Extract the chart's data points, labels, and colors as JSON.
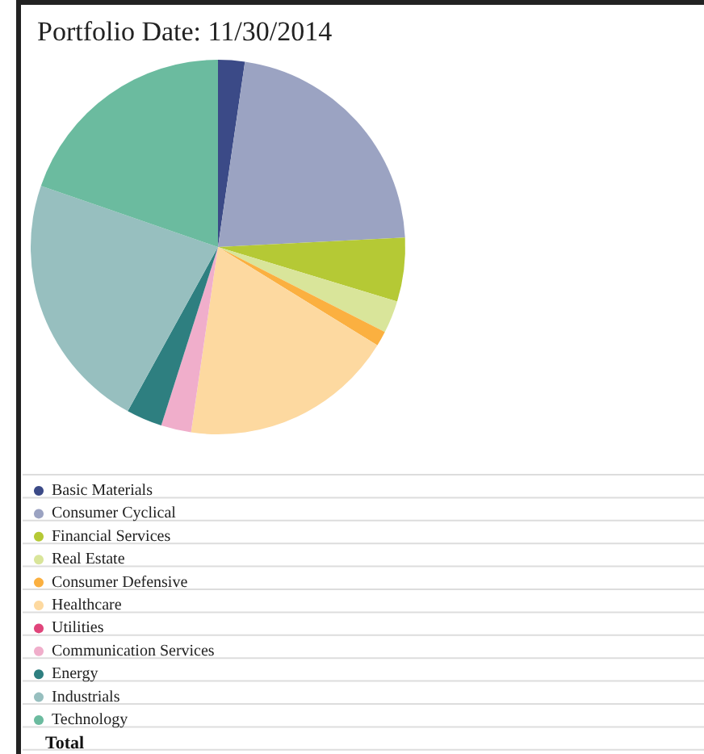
{
  "chart_data": {
    "type": "pie",
    "title": "Portfolio Date: 11/30/2014",
    "categories": [
      "Basic Materials",
      "Consumer Cyclical",
      "Financial Services",
      "Real Estate",
      "Consumer Defensive",
      "Healthcare",
      "Utilities",
      "Communication Services",
      "Energy",
      "Industrials",
      "Technology"
    ],
    "values": [
      2.3,
      21.9,
      5.5,
      2.8,
      1.3,
      18.5,
      0,
      2.6,
      3.1,
      22.3,
      19.7
    ],
    "colors": [
      "#3b4a87",
      "#9ba3c2",
      "#b5c935",
      "#d9e59a",
      "#fbb040",
      "#fdd9a0",
      "#e0457b",
      "#f0aecb",
      "#2e7f80",
      "#97bfbf",
      "#6bbb9f"
    ],
    "legend": "bottom",
    "annotations": [
      "Total"
    ]
  }
}
